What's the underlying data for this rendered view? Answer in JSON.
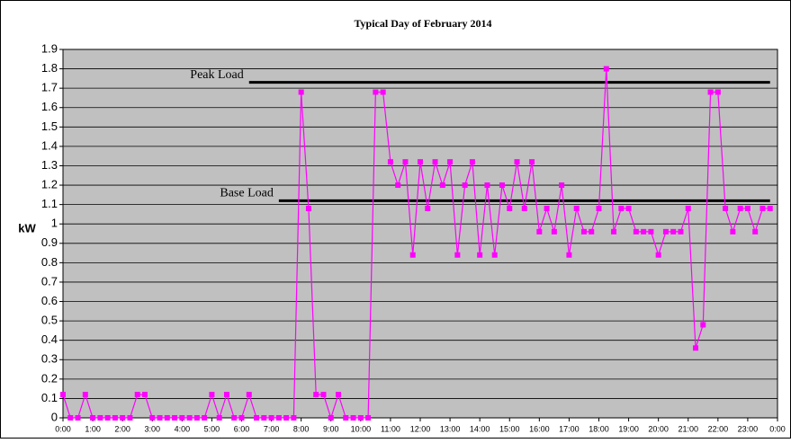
{
  "chart_data": {
    "type": "line",
    "title": "Typical Day of February 2014",
    "y_label": "kW",
    "x": [
      0,
      0.25,
      0.5,
      0.75,
      1,
      1.25,
      1.5,
      1.75,
      2,
      2.25,
      2.5,
      2.75,
      3,
      3.25,
      3.5,
      3.75,
      4,
      4.25,
      4.5,
      4.75,
      5,
      5.25,
      5.5,
      5.75,
      6,
      6.25,
      6.5,
      6.75,
      7,
      7.25,
      7.5,
      7.75,
      8,
      8.25,
      8.5,
      8.75,
      9,
      9.25,
      9.5,
      9.75,
      10,
      10.25,
      10.5,
      10.75,
      11,
      11.25,
      11.5,
      11.75,
      12,
      12.25,
      12.5,
      12.75,
      13,
      13.25,
      13.5,
      13.75,
      14,
      14.25,
      14.5,
      14.75,
      15,
      15.25,
      15.5,
      15.75,
      16,
      16.25,
      16.5,
      16.75,
      17,
      17.25,
      17.5,
      17.75,
      18,
      18.25,
      18.5,
      18.75,
      19,
      19.25,
      19.5,
      19.75,
      20,
      20.25,
      20.5,
      20.75,
      21,
      21.25,
      21.5,
      21.75,
      22,
      22.25,
      22.5,
      22.75,
      23,
      23.25,
      23.5,
      23.75
    ],
    "series": [
      {
        "color": "#ff00ff",
        "values": [
          0.12,
          0,
          0,
          0.12,
          0,
          0,
          0,
          0,
          0,
          0,
          0.12,
          0.12,
          0,
          0,
          0,
          0,
          0,
          0,
          0,
          0,
          0.12,
          0,
          0.12,
          0,
          0,
          0.12,
          0,
          0,
          0,
          0,
          0,
          0,
          1.68,
          1.08,
          0.12,
          0.12,
          0,
          0.12,
          0,
          0,
          0,
          0,
          1.68,
          1.68,
          1.32,
          1.2,
          1.32,
          0.84,
          1.32,
          1.08,
          1.32,
          1.2,
          1.32,
          0.84,
          1.2,
          1.32,
          0.84,
          1.2,
          0.84,
          1.2,
          1.08,
          1.32,
          1.08,
          1.32,
          0.96,
          1.08,
          0.96,
          1.2,
          0.84,
          1.08,
          0.96,
          0.96,
          1.08,
          1.8,
          0.96,
          1.08,
          1.08,
          0.96,
          0.96,
          0.96,
          0.84,
          0.96,
          0.96,
          0.96,
          1.08,
          0.36,
          0.48,
          1.68,
          1.68,
          1.08,
          0.96,
          1.08,
          1.08,
          0.96,
          1.08,
          1.08
        ]
      }
    ],
    "xlim": [
      0,
      24
    ],
    "xticks": [
      {
        "value": 0,
        "label": "0:00"
      },
      {
        "value": 1,
        "label": "1:00"
      },
      {
        "value": 2,
        "label": "2:00"
      },
      {
        "value": 3,
        "label": "3:00"
      },
      {
        "value": 4,
        "label": "4:00"
      },
      {
        "value": 5,
        "label": "5:00"
      },
      {
        "value": 6,
        "label": "6:00"
      },
      {
        "value": 7,
        "label": "7:00"
      },
      {
        "value": 8,
        "label": "8:00"
      },
      {
        "value": 9,
        "label": "9:00"
      },
      {
        "value": 10,
        "label": "10:00"
      },
      {
        "value": 11,
        "label": "11:00"
      },
      {
        "value": 12,
        "label": "12:00"
      },
      {
        "value": 13,
        "label": "13:00"
      },
      {
        "value": 14,
        "label": "14:00"
      },
      {
        "value": 15,
        "label": "15:00"
      },
      {
        "value": 16,
        "label": "16:00"
      },
      {
        "value": 17,
        "label": "17:00"
      },
      {
        "value": 18,
        "label": "18:00"
      },
      {
        "value": 19,
        "label": "19:00"
      },
      {
        "value": 20,
        "label": "20:00"
      },
      {
        "value": 21,
        "label": "21:00"
      },
      {
        "value": 22,
        "label": "22:00"
      },
      {
        "value": 23,
        "label": "23:00"
      },
      {
        "value": 24,
        "label": "0:00"
      }
    ],
    "ylim": [
      0,
      1.9
    ],
    "yticks": [
      0,
      0.1,
      0.2,
      0.3,
      0.4,
      0.5,
      0.6,
      0.7,
      0.8,
      0.9,
      1,
      1.1,
      1.2,
      1.3,
      1.4,
      1.5,
      1.6,
      1.7,
      1.8,
      1.9
    ],
    "grid": true,
    "reference_lines": [
      {
        "label": "Peak Load",
        "value": 1.73,
        "from": 6.25,
        "to": 23.75
      },
      {
        "label": "Base Load",
        "value": 1.12,
        "from": 7.25,
        "to": 23.75
      }
    ]
  }
}
